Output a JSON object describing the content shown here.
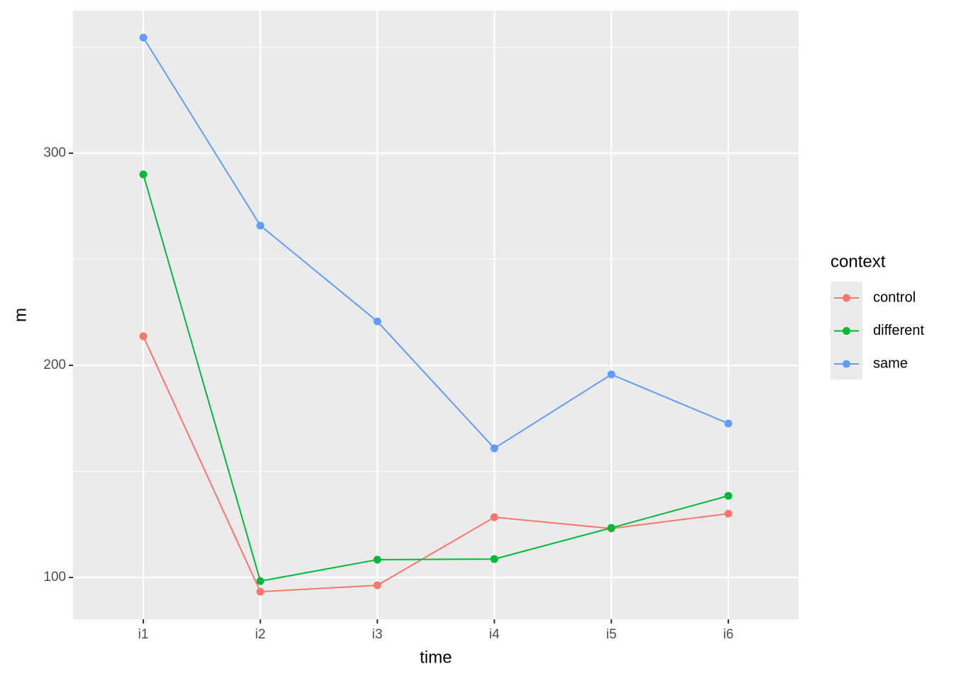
{
  "chart_data": {
    "type": "line",
    "x_label": "time",
    "y_label": "m",
    "categories": [
      "i1",
      "i2",
      "i3",
      "i4",
      "i5",
      "i6"
    ],
    "series": [
      {
        "name": "control",
        "color": "#f8766d",
        "values": [
          213.7,
          93.3,
          96.3,
          128.4,
          123.1,
          130.1
        ]
      },
      {
        "name": "different",
        "color": "#00ba38",
        "values": [
          290,
          98.3,
          108.4,
          108.7,
          123.4,
          138.5
        ]
      },
      {
        "name": "same",
        "color": "#619cff",
        "values": [
          354.5,
          265.9,
          220.7,
          160.9,
          195.7,
          172.6
        ]
      }
    ],
    "ylim": [
      80.3,
      367.2
    ],
    "yticks": [
      100,
      200,
      300
    ],
    "minor_yticks": [
      150,
      250,
      350
    ],
    "grid": true,
    "legend_title": "context",
    "legend_position": "right"
  }
}
